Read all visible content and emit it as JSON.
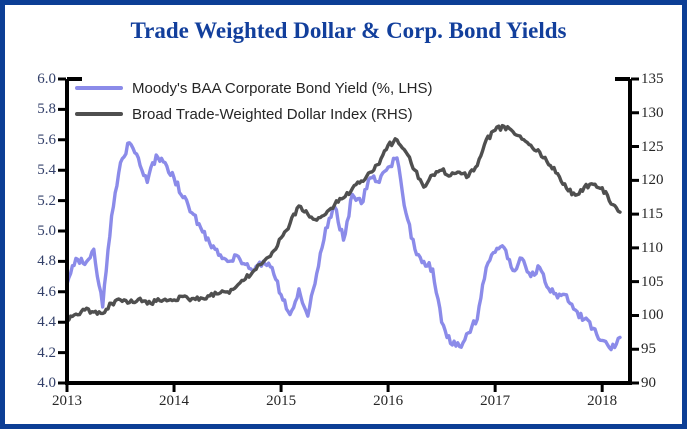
{
  "title": "Trade Weighted Dollar & Corp. Bond Yields",
  "colors": {
    "frame_border": "#0c3e95",
    "title_text": "#123f9c",
    "axis": "#000000",
    "left_axis_labels": "#33406a",
    "right_axis_labels": "#262626",
    "baa_line": "#8b8be9",
    "twd_line": "#4f4f4f"
  },
  "legend": {
    "items": [
      {
        "label": "Moody's BAA Corporate Bond Yield (%, LHS)"
      },
      {
        "label": "Broad Trade-Weighted Dollar Index (RHS)"
      }
    ]
  },
  "chart_data": {
    "type": "line",
    "title": "Trade Weighted Dollar & Corp. Bond Yields",
    "grid": false,
    "legend_position": "top-left",
    "x_axis": {
      "tick_labels": [
        "2013",
        "2014",
        "2015",
        "2016",
        "2017",
        "2018"
      ],
      "tick_values": [
        2013,
        2014,
        2015,
        2016,
        2017,
        2018
      ],
      "range": [
        2013.0,
        2018.26
      ]
    },
    "y_axis_left": {
      "tick_labels": [
        "6.0",
        "5.8",
        "5.6",
        "5.4",
        "5.2",
        "5.0",
        "4.8",
        "4.6",
        "4.4",
        "4.2",
        "4.0"
      ],
      "tick_values": [
        6.0,
        5.8,
        5.6,
        5.4,
        5.2,
        5.0,
        4.8,
        4.6,
        4.4,
        4.2,
        4.0
      ],
      "range": [
        4.0,
        6.0
      ]
    },
    "y_axis_right": {
      "tick_labels": [
        "135",
        "130",
        "125",
        "120",
        "115",
        "110",
        "105",
        "100",
        "95",
        "90"
      ],
      "tick_values": [
        135,
        130,
        125,
        120,
        115,
        110,
        105,
        100,
        95,
        90
      ],
      "range": [
        90,
        135
      ]
    },
    "series": [
      {
        "name": "Moody's BAA Corporate Bond Yield (%, LHS)",
        "axis": "left",
        "color": "#8b8be9",
        "x_start": "2013-01",
        "interval": "monthly",
        "values": [
          4.65,
          4.82,
          4.78,
          4.88,
          4.5,
          5.1,
          5.45,
          5.58,
          5.48,
          5.32,
          5.5,
          5.45,
          5.35,
          5.22,
          5.12,
          5.02,
          4.92,
          4.84,
          4.8,
          4.84,
          4.78,
          4.74,
          4.8,
          4.76,
          4.58,
          4.45,
          4.62,
          4.44,
          4.72,
          5.02,
          5.16,
          4.94,
          5.24,
          5.18,
          5.35,
          5.32,
          5.42,
          5.48,
          5.12,
          4.88,
          4.8,
          4.75,
          4.4,
          4.26,
          4.24,
          4.33,
          4.42,
          4.76,
          4.86,
          4.89,
          4.74,
          4.82,
          4.7,
          4.76,
          4.62,
          4.56,
          4.58,
          4.48,
          4.42,
          4.36,
          4.28,
          4.22,
          4.3
        ]
      },
      {
        "name": "Broad Trade-Weighted Dollar Index (RHS)",
        "axis": "right",
        "color": "#4f4f4f",
        "x_start": "2013-01",
        "interval": "monthly",
        "values": [
          99.3,
          100.2,
          100.8,
          100.5,
          100.3,
          101.8,
          102.3,
          101.9,
          102.4,
          101.7,
          102.1,
          102.4,
          102.3,
          102.8,
          102.5,
          102.6,
          102.9,
          103.2,
          103.5,
          104.3,
          105.4,
          106.7,
          107.9,
          109.3,
          111.5,
          113.6,
          116.2,
          115.0,
          114.1,
          115.0,
          116.4,
          117.4,
          118.8,
          119.9,
          121.2,
          122.4,
          125.2,
          126.0,
          124.2,
          121.5,
          119.0,
          120.8,
          121.5,
          120.7,
          121.2,
          120.6,
          122.2,
          126.0,
          127.4,
          128.0,
          127.2,
          126.1,
          125.2,
          124.2,
          122.3,
          121.0,
          118.8,
          117.8,
          119.0,
          119.4,
          118.9,
          116.5,
          115.3
        ]
      }
    ]
  }
}
